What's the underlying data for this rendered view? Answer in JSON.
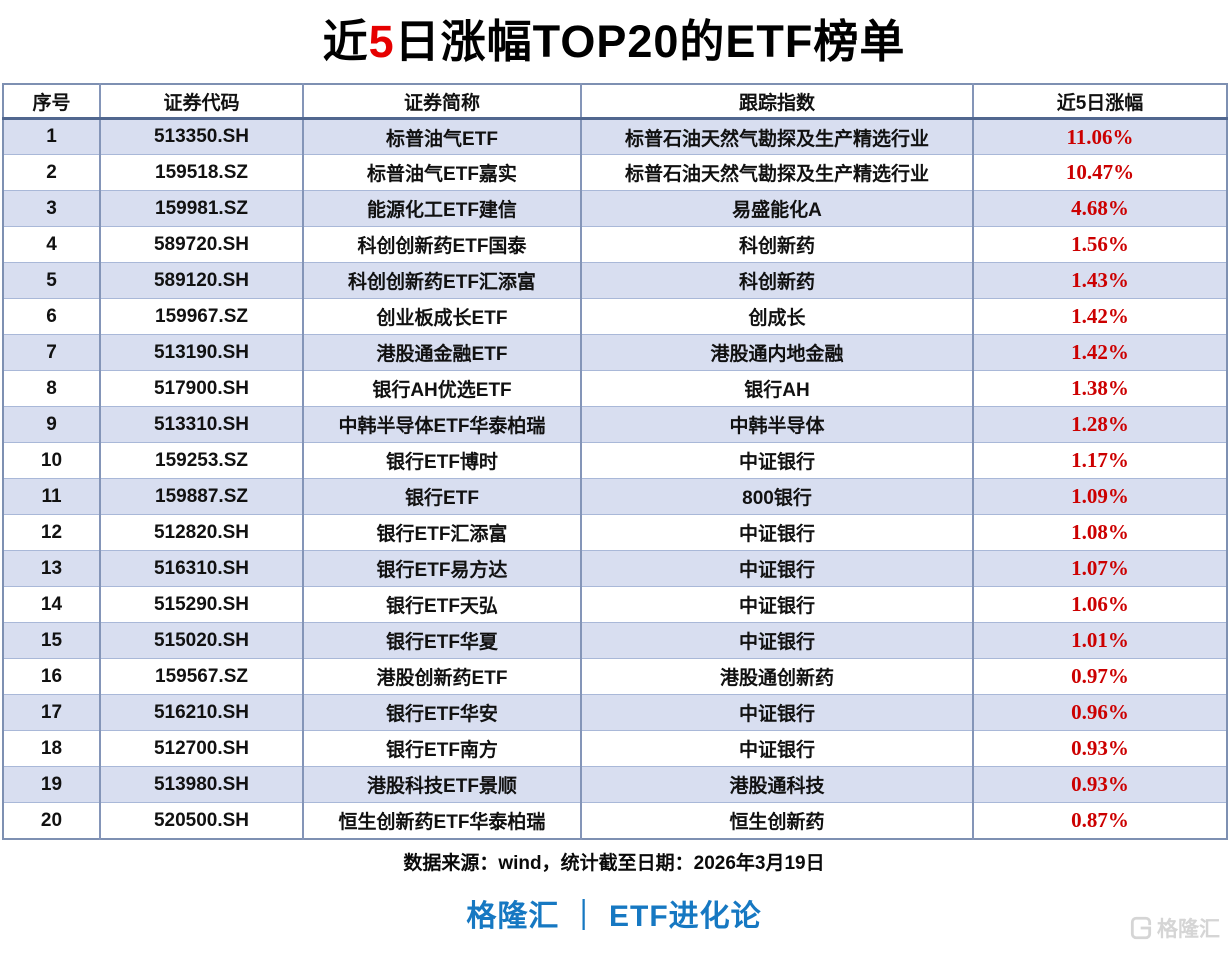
{
  "title": {
    "part1": "近",
    "highlight": "5",
    "part2": "日涨幅TOP20的ETF榜单"
  },
  "chart_data": {
    "type": "table",
    "title": "近5日涨幅TOP20的ETF榜单",
    "columns": [
      "序号",
      "证券代码",
      "证券简称",
      "跟踪指数",
      "近5日涨幅"
    ],
    "rows": [
      {
        "no": "1",
        "code": "513350.SH",
        "name": "标普油气ETF",
        "index": "标普石油天然气勘探及生产精选行业",
        "change": "11.06%"
      },
      {
        "no": "2",
        "code": "159518.SZ",
        "name": "标普油气ETF嘉实",
        "index": "标普石油天然气勘探及生产精选行业",
        "change": "10.47%"
      },
      {
        "no": "3",
        "code": "159981.SZ",
        "name": "能源化工ETF建信",
        "index": "易盛能化A",
        "change": "4.68%"
      },
      {
        "no": "4",
        "code": "589720.SH",
        "name": "科创创新药ETF国泰",
        "index": "科创新药",
        "change": "1.56%"
      },
      {
        "no": "5",
        "code": "589120.SH",
        "name": "科创创新药ETF汇添富",
        "index": "科创新药",
        "change": "1.43%"
      },
      {
        "no": "6",
        "code": "159967.SZ",
        "name": "创业板成长ETF",
        "index": "创成长",
        "change": "1.42%"
      },
      {
        "no": "7",
        "code": "513190.SH",
        "name": "港股通金融ETF",
        "index": "港股通内地金融",
        "change": "1.42%"
      },
      {
        "no": "8",
        "code": "517900.SH",
        "name": "银行AH优选ETF",
        "index": "银行AH",
        "change": "1.38%"
      },
      {
        "no": "9",
        "code": "513310.SH",
        "name": "中韩半导体ETF华泰柏瑞",
        "index": "中韩半导体",
        "change": "1.28%"
      },
      {
        "no": "10",
        "code": "159253.SZ",
        "name": "银行ETF博时",
        "index": "中证银行",
        "change": "1.17%"
      },
      {
        "no": "11",
        "code": "159887.SZ",
        "name": "银行ETF",
        "index": "800银行",
        "change": "1.09%"
      },
      {
        "no": "12",
        "code": "512820.SH",
        "name": "银行ETF汇添富",
        "index": "中证银行",
        "change": "1.08%"
      },
      {
        "no": "13",
        "code": "516310.SH",
        "name": "银行ETF易方达",
        "index": "中证银行",
        "change": "1.07%"
      },
      {
        "no": "14",
        "code": "515290.SH",
        "name": "银行ETF天弘",
        "index": "中证银行",
        "change": "1.06%"
      },
      {
        "no": "15",
        "code": "515020.SH",
        "name": "银行ETF华夏",
        "index": "中证银行",
        "change": "1.01%"
      },
      {
        "no": "16",
        "code": "159567.SZ",
        "name": "港股创新药ETF",
        "index": "港股通创新药",
        "change": "0.97%"
      },
      {
        "no": "17",
        "code": "516210.SH",
        "name": "银行ETF华安",
        "index": "中证银行",
        "change": "0.96%"
      },
      {
        "no": "18",
        "code": "512700.SH",
        "name": "银行ETF南方",
        "index": "中证银行",
        "change": "0.93%"
      },
      {
        "no": "19",
        "code": "513980.SH",
        "name": "港股科技ETF景顺",
        "index": "港股通科技",
        "change": "0.93%"
      },
      {
        "no": "20",
        "code": "520500.SH",
        "name": "恒生创新药ETF华泰柏瑞",
        "index": "恒生创新药",
        "change": "0.87%"
      }
    ],
    "layout": {
      "grid": true,
      "stripe_odd_rows": true,
      "all_cells_centered": true
    }
  },
  "footer": {
    "source": "数据来源：wind，统计截至日期：2026年3月19日",
    "brand": "格隆汇 ｜ ETF进化论",
    "watermark": "格隆汇"
  },
  "colors": {
    "title_highlight": "#e60000",
    "change_red": "#cc0000",
    "row_stripe": "#d8def0",
    "border_outer": "#7e90b2",
    "border_vertical": "#8495b8",
    "border_row": "#a9b8d8",
    "header_underline": "#51678f",
    "brand_blue": "#1678c2",
    "watermark_gray": "#d5d5d5"
  }
}
